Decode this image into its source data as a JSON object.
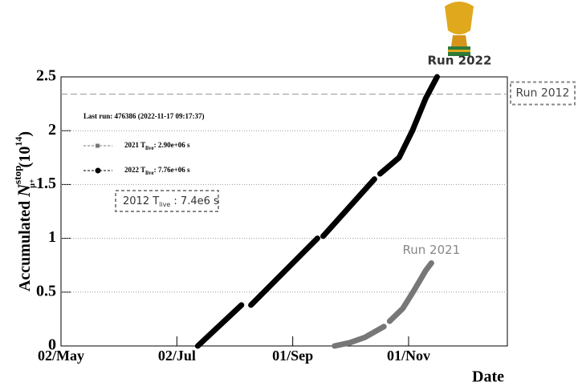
{
  "chart_data": {
    "type": "line",
    "ylabel": [
      "Accumulated ",
      "N",
      "stop",
      "μ+",
      "(10",
      "14",
      ")"
    ],
    "xlabel": "Date",
    "annotation": "Last run: 476386 (2022-11-17 09:17:37)",
    "box_note": [
      "2012 T",
      "live",
      " : 7.4e6 s"
    ],
    "xlim": [
      0,
      235
    ],
    "xticks": [
      {
        "value": 0,
        "label": "02/May"
      },
      {
        "value": 61,
        "label": "02/Jul"
      },
      {
        "value": 122,
        "label": "01/Sep"
      },
      {
        "value": 183,
        "label": "01/Nov"
      }
    ],
    "ylim": [
      0,
      2.5
    ],
    "yticks": [
      0,
      0.5,
      1,
      1.5,
      2,
      2.5
    ],
    "grid": true,
    "hlines": [
      {
        "value": 2.34,
        "label": "Run 2012"
      }
    ],
    "series": [
      {
        "name": "Run 2021",
        "color": "#777777",
        "legend": [
          "2021 T",
          "live",
          ": 2.90e+06 s"
        ],
        "x": [
          144,
          152,
          160,
          170,
          172,
          173,
          180,
          186,
          192,
          195
        ],
        "values": [
          0,
          0.03,
          0.08,
          0.18,
          null,
          0.23,
          0.35,
          0.52,
          0.7,
          0.77
        ]
      },
      {
        "name": "Run 2022",
        "color": "#000000",
        "legend": [
          "2022 T",
          "live",
          ": 7.76e+06 s"
        ],
        "x": [
          72,
          95,
          97,
          100,
          135,
          136,
          138,
          165,
          166,
          168,
          178,
          185,
          192,
          198
        ],
        "values": [
          0,
          0.38,
          null,
          0.38,
          1.0,
          null,
          1.02,
          1.55,
          null,
          1.6,
          1.75,
          2.0,
          2.3,
          2.5
        ]
      }
    ]
  }
}
